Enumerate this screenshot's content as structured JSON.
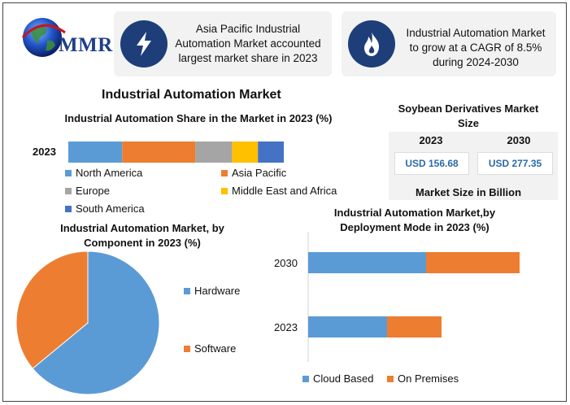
{
  "logo": {
    "text": "MMR"
  },
  "cards": [
    {
      "text": "Asia Pacific Industrial Automation Market accounted largest market share in 2023",
      "icon": "lightning-icon"
    },
    {
      "text": "Industrial Automation Market to grow at a CAGR of 8.5% during 2024-2030",
      "icon": "flame-icon"
    }
  ],
  "main_title": "Industrial Automation Market",
  "share_chart_title": "Industrial Automation Share in the Market in 2023 (%)",
  "share_year_label": "2023",
  "soybean": {
    "title": "Soybean Derivatives Market Size",
    "year1": "2023",
    "year2": "2030",
    "value1": "USD 156.68",
    "value2": "USD 277.35",
    "footer": "Market Size in Billion"
  },
  "component_title": "Industrial Automation Market, by Component in 2023 (%)",
  "deployment_title": "Industrial Automation Market,by Deployment Mode in 2023 (%)",
  "colors": {
    "blue": "#5b9bd5",
    "orange": "#ed7d31",
    "gray": "#a5a5a5",
    "yellow": "#ffc000",
    "darkblue": "#4472c4",
    "navy": "#1d3e78"
  },
  "chart_data": [
    {
      "type": "bar",
      "orientation": "horizontal-stacked",
      "title": "Industrial Automation Share in the Market in 2023 (%)",
      "categories": [
        "2023"
      ],
      "series": [
        {
          "name": "North America",
          "values": [
            25
          ]
        },
        {
          "name": "Asia Pacific",
          "values": [
            34
          ]
        },
        {
          "name": "Europe",
          "values": [
            17
          ]
        },
        {
          "name": "Middle East and Africa",
          "values": [
            12
          ]
        },
        {
          "name": "South America",
          "values": [
            12
          ]
        }
      ],
      "legend": "bottom"
    },
    {
      "type": "pie",
      "title": "Industrial Automation Market, by Component in 2023 (%)",
      "categories": [
        "Hardware",
        "Software"
      ],
      "values": [
        64,
        36
      ],
      "legend": "right"
    },
    {
      "type": "bar",
      "orientation": "horizontal-stacked",
      "title": "Industrial Automation Market,by Deployment Mode in 2023 (%)",
      "categories": [
        "2030",
        "2023"
      ],
      "series": [
        {
          "name": "Cloud Based",
          "values": [
            145,
            97
          ]
        },
        {
          "name": "On Premises",
          "values": [
            115,
            67
          ]
        }
      ],
      "legend": "bottom"
    }
  ]
}
